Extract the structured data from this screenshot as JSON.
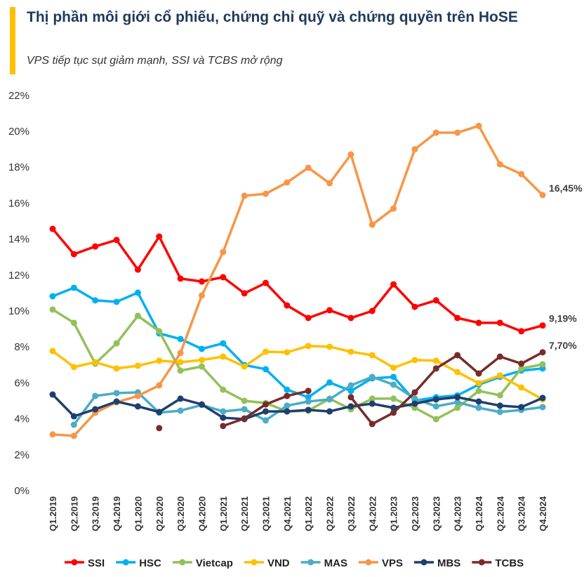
{
  "header": {
    "title": "Thị phần môi giới cổ phiếu, chứng chỉ quỹ và chứng quyền trên HoSE",
    "subtitle": "VPS tiếp tục sụt giảm mạnh, SSI và TCBS mở rộng",
    "accent_color": "#ffc000"
  },
  "chart_data": {
    "type": "line",
    "title": "Thị phần môi giới cổ phiếu, chứng chỉ quỹ và chứng quyền trên HoSE",
    "xlabel": "",
    "ylabel": "",
    "ylim": [
      0,
      22
    ],
    "yticks": [
      "0%",
      "2%",
      "4%",
      "6%",
      "8%",
      "10%",
      "12%",
      "14%",
      "16%",
      "18%",
      "20%",
      "22%"
    ],
    "grid": false,
    "legend": "bottom",
    "categories": [
      "Q1.2019",
      "Q2.2019",
      "Q3.2019",
      "Q4.2019",
      "Q1.2020",
      "Q2.2020",
      "Q3.2020",
      "Q4.2020",
      "Q1.2021",
      "Q2.2021",
      "Q3.2021",
      "Q4.2021",
      "Q1.2022",
      "Q2.2022",
      "Q3.2022",
      "Q4.2022",
      "Q1.2023",
      "Q2.2023",
      "Q3.2023",
      "Q4.2023",
      "Q1.2024",
      "Q2.2024",
      "Q3.2024",
      "Q4.2024"
    ],
    "series": [
      {
        "name": "SSI",
        "color": "#ff0000",
        "values": [
          14.57,
          13.16,
          13.59,
          13.95,
          12.3,
          14.14,
          11.8,
          11.64,
          11.88,
          10.98,
          11.56,
          10.31,
          9.61,
          10.04,
          9.61,
          10.0,
          11.48,
          10.23,
          10.59,
          9.61,
          9.34,
          9.34,
          8.87,
          9.19
        ]
      },
      {
        "name": "HSC",
        "color": "#00b0f0",
        "values": [
          10.82,
          11.29,
          10.59,
          10.51,
          11.02,
          8.75,
          8.44,
          7.89,
          8.2,
          6.99,
          6.76,
          5.62,
          5.2,
          6.02,
          5.55,
          6.25,
          6.33,
          5.0,
          5.2,
          5.3,
          5.9,
          6.33,
          6.68,
          6.8
        ]
      },
      {
        "name": "Vietcap",
        "color": "#92c05a",
        "values": [
          10.08,
          9.34,
          7.07,
          8.2,
          9.73,
          8.87,
          6.68,
          6.91,
          5.62,
          5.0,
          4.88,
          4.41,
          4.45,
          5.12,
          4.53,
          5.12,
          5.12,
          4.61,
          3.98,
          4.61,
          5.55,
          5.31,
          6.8,
          7.03
        ]
      },
      {
        "name": "VND",
        "color": "#ffc000",
        "values": [
          7.77,
          6.88,
          7.15,
          6.8,
          6.95,
          7.23,
          7.15,
          7.27,
          7.46,
          6.91,
          7.73,
          7.7,
          8.05,
          8.01,
          7.73,
          7.54,
          6.84,
          7.27,
          7.23,
          6.6,
          5.98,
          6.41,
          5.74,
          5.08
        ]
      },
      {
        "name": "MAS",
        "color": "#4bacc6",
        "values": [
          null,
          3.67,
          5.27,
          5.43,
          5.47,
          4.34,
          4.45,
          4.77,
          4.41,
          4.53,
          3.91,
          4.73,
          4.96,
          5.08,
          5.86,
          6.33,
          5.9,
          5.12,
          4.69,
          4.92,
          4.61,
          4.38,
          4.49,
          4.65
        ]
      },
      {
        "name": "VPS",
        "color": "#f79646",
        "values": [
          3.13,
          3.05,
          4.34,
          4.92,
          5.27,
          5.86,
          7.66,
          10.86,
          13.28,
          16.41,
          16.52,
          17.15,
          17.97,
          17.11,
          18.71,
          14.8,
          15.7,
          19.0,
          19.92,
          19.92,
          20.3,
          18.16,
          17.62,
          16.45
        ]
      },
      {
        "name": "MBS",
        "color": "#1f3f6e",
        "values": [
          5.35,
          4.14,
          4.53,
          4.96,
          4.69,
          4.38,
          5.12,
          4.8,
          4.06,
          3.98,
          4.41,
          4.41,
          4.49,
          4.41,
          4.69,
          4.84,
          4.61,
          4.84,
          5.08,
          5.2,
          4.96,
          4.73,
          4.65,
          5.16
        ]
      },
      {
        "name": "TCBS",
        "color": "#772c2a",
        "values": [
          null,
          null,
          null,
          null,
          null,
          3.48,
          null,
          null,
          3.6,
          4.02,
          4.8,
          5.27,
          5.55,
          null,
          5.2,
          3.71,
          4.34,
          5.47,
          6.8,
          7.54,
          6.52,
          7.46,
          7.07,
          7.7
        ]
      }
    ],
    "annotations": [
      {
        "series": "VPS",
        "category": "Q4.2024",
        "text": "16,45%"
      },
      {
        "series": "SSI",
        "category": "Q4.2024",
        "text": "9,19%"
      },
      {
        "series": "TCBS",
        "category": "Q4.2024",
        "text": "7,70%"
      }
    ]
  }
}
